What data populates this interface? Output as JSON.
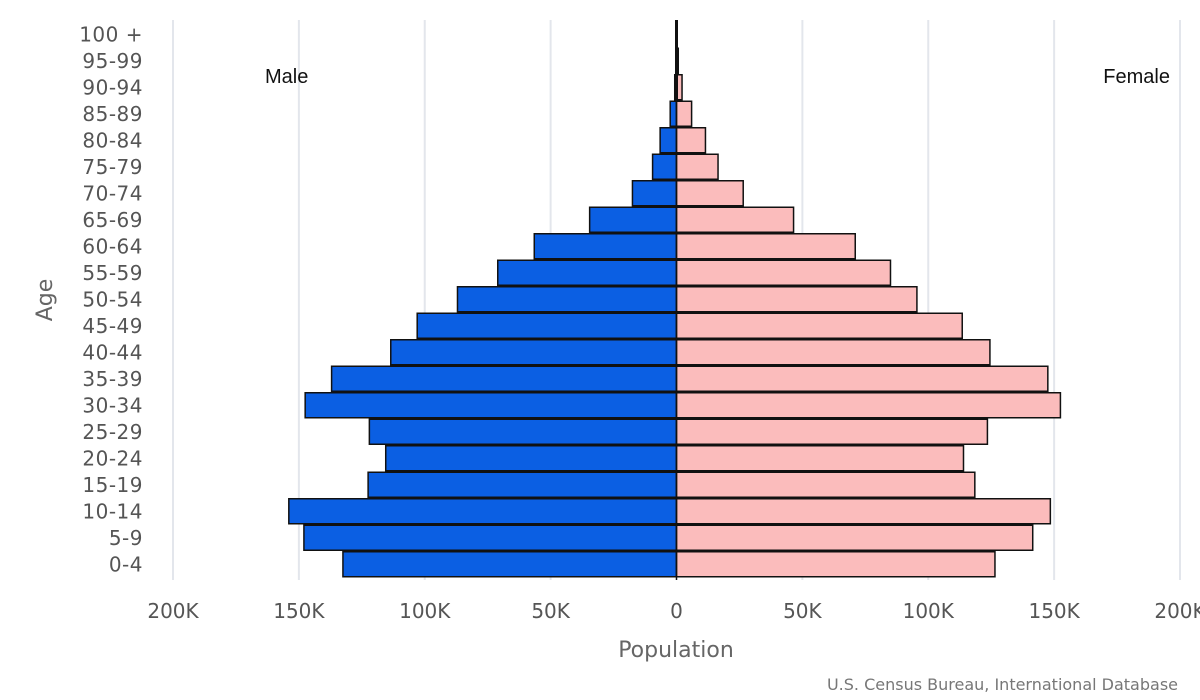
{
  "chart_data": {
    "type": "bar",
    "orientation": "horizontal-pyramid",
    "ylabel": "Age",
    "xlabel": "Population",
    "xlim": [
      -200000,
      200000
    ],
    "x_ticks": [
      {
        "value": -200000,
        "label": "200K"
      },
      {
        "value": -150000,
        "label": "150K"
      },
      {
        "value": -100000,
        "label": "100K"
      },
      {
        "value": -50000,
        "label": "50K"
      },
      {
        "value": 0,
        "label": "0"
      },
      {
        "value": 50000,
        "label": "50K"
      },
      {
        "value": 100000,
        "label": "100K"
      },
      {
        "value": 150000,
        "label": "150K"
      },
      {
        "value": 200000,
        "label": "200K"
      }
    ],
    "categories": [
      "100 +",
      "95-99",
      "90-94",
      "85-89",
      "80-84",
      "75-79",
      "70-74",
      "65-69",
      "60-64",
      "55-59",
      "50-54",
      "45-49",
      "40-44",
      "35-39",
      "30-34",
      "25-29",
      "20-24",
      "15-19",
      "10-14",
      "5-9",
      "0-4"
    ],
    "series": [
      {
        "name": "Male",
        "color": "#0b5fe3",
        "values": [
          100,
          300,
          700,
          2500,
          6500,
          9500,
          17500,
          34500,
          56500,
          71000,
          87000,
          103000,
          113500,
          137000,
          147500,
          122000,
          115500,
          122500,
          154000,
          148000,
          132500
        ]
      },
      {
        "name": "Female",
        "color": "#fbbcbc",
        "values": [
          200,
          700,
          2200,
          6000,
          11500,
          16500,
          26500,
          46500,
          71000,
          85000,
          95500,
          113500,
          124500,
          147500,
          152500,
          123500,
          114000,
          118500,
          148500,
          141500,
          126500
        ]
      }
    ],
    "legend": {
      "male_label": "Male",
      "female_label": "Female"
    },
    "source": "U.S. Census Bureau, International Database"
  }
}
